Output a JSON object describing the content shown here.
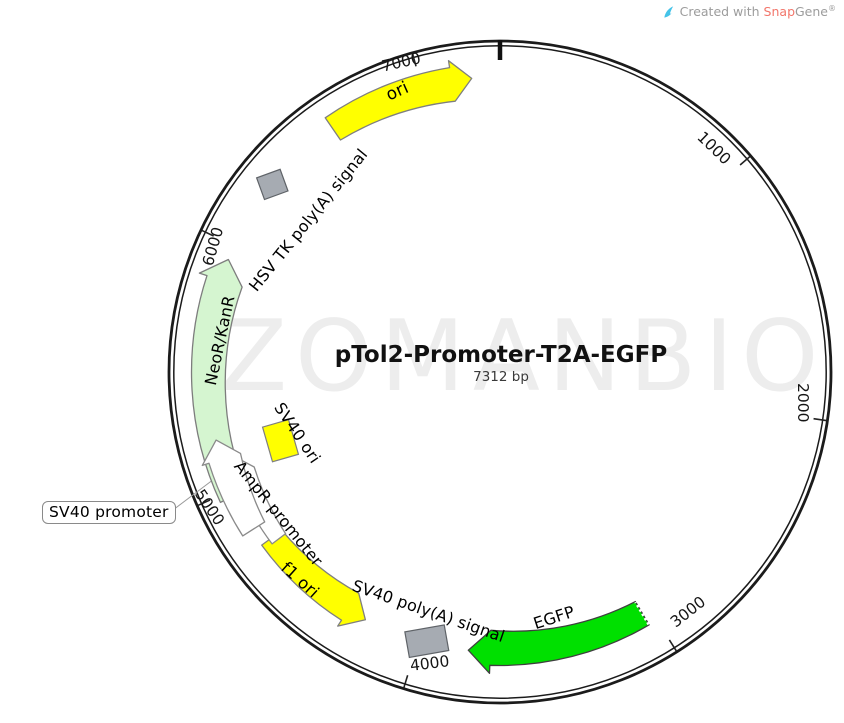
{
  "watermark": "ZOMANBIO",
  "credit": {
    "created_with": "Created with ",
    "brand_snap": "Snap",
    "brand_gene": "Gene",
    "registered": "®"
  },
  "plasmid": {
    "title": "pTol2-Promoter-T2A-EGFP",
    "length": "7312 bp",
    "total_bp": 7312
  },
  "ticks": [
    {
      "label": "1000",
      "bp": 1000
    },
    {
      "label": "2000",
      "bp": 2000
    },
    {
      "label": "3000",
      "bp": 3000
    },
    {
      "label": "4000",
      "bp": 4000
    },
    {
      "label": "5000",
      "bp": 5000
    },
    {
      "label": "6000",
      "bp": 6000
    },
    {
      "label": "7000",
      "bp": 7000
    }
  ],
  "features": [
    {
      "id": "ori",
      "label": "ori",
      "shape": "arc-arrow",
      "direction": "cw",
      "bp_start": 6611,
      "bp_end": 7200,
      "fill": "#ffff00",
      "stroke": "#7f7f7f"
    },
    {
      "id": "hsv-tk-polya",
      "label": "HSV TK poly(A) signal",
      "shape": "box",
      "bp_center": 6286,
      "fill": "#a6abb2",
      "stroke": "#5f6368"
    },
    {
      "id": "neor-kanr",
      "label": "NeoR/KanR",
      "shape": "arc-arrow",
      "direction": "cw",
      "bp_start": 4976,
      "bp_end": 5941,
      "fill": "#d5f5d0",
      "stroke": "#7d7d7d"
    },
    {
      "id": "sv40-ori",
      "label": "SV40 ori",
      "shape": "box",
      "bp_center": 5131,
      "fill": "#ffff00",
      "stroke": "#7f7f7f"
    },
    {
      "id": "f1-ori",
      "label": "f1 ori",
      "shape": "arc-arrow",
      "direction": "ccw",
      "bp_start": 4235,
      "bp_end": 4753,
      "fill": "#ffff00",
      "stroke": "#7f7f7f"
    },
    {
      "id": "sv40-polya",
      "label": "SV40 poly(A) signal",
      "shape": "box",
      "bp_center": 3965,
      "fill": "#a6abb2",
      "stroke": "#5f6368"
    },
    {
      "id": "egfp",
      "label": "EGFP",
      "shape": "arc-arrow",
      "direction": "cw",
      "bp_start": 3036,
      "bp_end": 3788,
      "fill": "#00e000",
      "stroke": "#3f3f3f",
      "jagged_tail": true
    },
    {
      "id": "ampr-promoter",
      "label": "AmpR promoter",
      "shape": "arc-arrow",
      "direction": "cw",
      "bp_start": 4732,
      "bp_end": 5118,
      "fill": "#ffffff",
      "stroke": "#8a8a8a"
    },
    {
      "id": "sv40-promoter",
      "label": "SV40 promoter",
      "shape": "arc-arrow",
      "direction": "cw",
      "bp_start": 4824,
      "bp_end": 5210,
      "fill": "#ffffff",
      "stroke": "#8a8a8a",
      "boxed_label": true
    }
  ]
}
